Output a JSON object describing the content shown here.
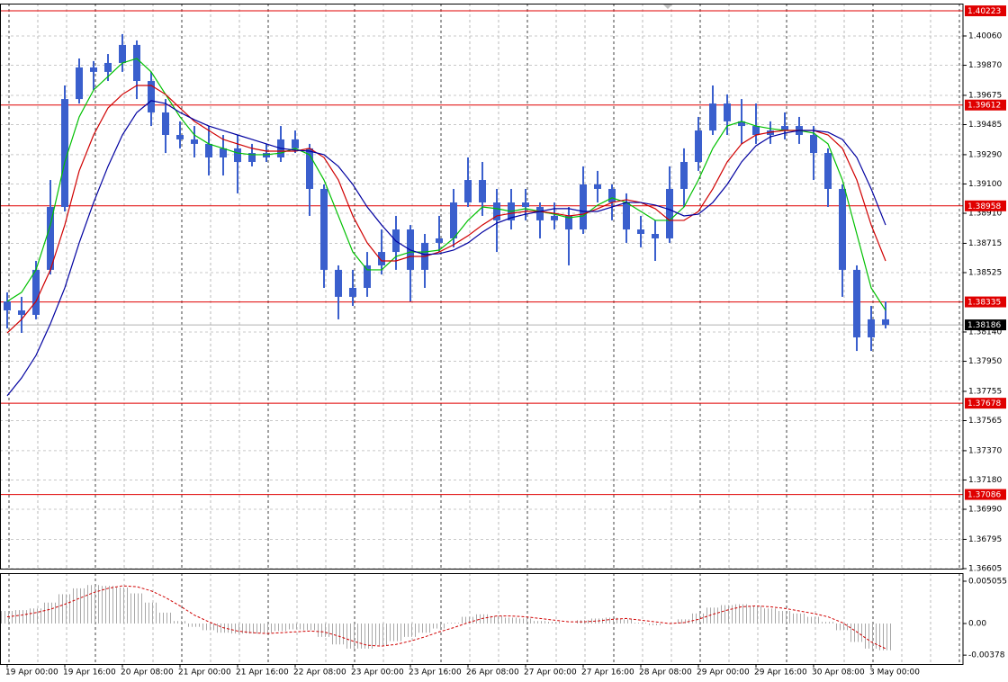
{
  "chart_data": [
    {
      "type": "ohlc",
      "color": "#3a5fcd",
      "categories": [
        "19 Apr 00:00",
        null,
        null,
        null,
        "19 Apr 16:00",
        null,
        null,
        null,
        "20 Apr 08:00",
        null,
        null,
        null,
        "21 Apr 00:00",
        null,
        null,
        null,
        "21 Apr 16:00",
        null,
        null,
        null,
        "22 Apr 08:00",
        null,
        null,
        null,
        "23 Apr 00:00",
        null,
        null,
        null,
        "23 Apr 16:00",
        null,
        null,
        null,
        "26 Apr 08:00",
        null,
        null,
        null,
        "27 Apr 00:00",
        null,
        null,
        null,
        "27 Apr 16:00",
        null,
        null,
        null,
        "28 Apr 08:00",
        null,
        null,
        null,
        "29 Apr 00:00",
        null,
        null,
        null,
        "29 Apr 16:00",
        null,
        null,
        null,
        "30 Apr 08:00",
        null,
        null,
        null,
        "3 May 00:00",
        null
      ],
      "open": [
        1.38338,
        1.3828,
        1.38251,
        1.38543,
        1.38951,
        1.39651,
        1.39856,
        1.39827,
        1.39885,
        1.40002,
        1.39768,
        1.39564,
        1.39418,
        1.39389,
        1.3936,
        1.39272,
        1.39331,
        1.39243,
        1.39301,
        1.39272,
        1.39389,
        1.39331,
        1.39068,
        1.38543,
        1.38368,
        1.38426,
        1.38572,
        1.38659,
        1.38805,
        1.38543,
        1.38718,
        1.38747,
        1.3898,
        1.39126,
        1.3898,
        1.38864,
        1.3898,
        1.38951,
        1.38864,
        1.38893,
        1.38805,
        1.39097,
        1.39068,
        1.3898,
        1.38805,
        1.38776,
        1.38747,
        1.39068,
        1.39243,
        1.39447,
        1.39622,
        1.39506,
        1.39476,
        1.39418,
        1.39447,
        1.39476,
        1.39418,
        1.39301,
        1.39068,
        1.38543,
        1.38105,
        1.38222
      ],
      "high": [
        1.38397,
        1.38368,
        1.38601,
        1.39126,
        1.39739,
        1.39914,
        1.39897,
        1.39943,
        1.40072,
        1.40031,
        1.39827,
        1.39651,
        1.39506,
        1.39476,
        1.39476,
        1.39418,
        1.39418,
        1.3936,
        1.3936,
        1.39476,
        1.39447,
        1.3936,
        1.39097,
        1.38572,
        1.38543,
        1.38659,
        1.38805,
        1.38893,
        1.38834,
        1.38776,
        1.38893,
        1.39068,
        1.39272,
        1.39243,
        1.39068,
        1.39068,
        1.39068,
        1.3898,
        1.3898,
        1.38951,
        1.39214,
        1.39185,
        1.39097,
        1.39039,
        1.38893,
        1.38864,
        1.39214,
        1.39331,
        1.39535,
        1.39739,
        1.39681,
        1.39651,
        1.39622,
        1.39506,
        1.39564,
        1.39535,
        1.39476,
        1.39331,
        1.39097,
        1.38572,
        1.38309,
        1.38338
      ],
      "low": [
        1.38163,
        1.38134,
        1.38222,
        1.38513,
        1.38922,
        1.39622,
        1.3971,
        1.39768,
        1.39827,
        1.39651,
        1.39476,
        1.39301,
        1.39331,
        1.39272,
        1.39155,
        1.39155,
        1.39039,
        1.39214,
        1.39243,
        1.39243,
        1.39301,
        1.38893,
        1.38426,
        1.38222,
        1.38309,
        1.38368,
        1.38513,
        1.38543,
        1.38338,
        1.38426,
        1.38659,
        1.38689,
        1.38951,
        1.38893,
        1.38659,
        1.38805,
        1.38864,
        1.38747,
        1.38805,
        1.38572,
        1.38776,
        1.3898,
        1.38864,
        1.38718,
        1.38689,
        1.38601,
        1.38718,
        1.38951,
        1.39185,
        1.39418,
        1.39418,
        1.3936,
        1.3936,
        1.3936,
        1.39389,
        1.3936,
        1.39126,
        1.38951,
        1.38368,
        1.38017,
        1.38017,
        1.38163
      ],
      "close": [
        1.3828,
        1.38251,
        1.38543,
        1.38951,
        1.39651,
        1.39856,
        1.39827,
        1.39885,
        1.40002,
        1.39768,
        1.39564,
        1.39418,
        1.39389,
        1.3936,
        1.39272,
        1.39331,
        1.39243,
        1.39301,
        1.39272,
        1.39389,
        1.39331,
        1.39068,
        1.38543,
        1.38368,
        1.38426,
        1.38572,
        1.38659,
        1.38805,
        1.38543,
        1.38718,
        1.38747,
        1.3898,
        1.39126,
        1.3898,
        1.38864,
        1.3898,
        1.38951,
        1.38864,
        1.38893,
        1.38805,
        1.39097,
        1.39068,
        1.3898,
        1.38805,
        1.38776,
        1.38747,
        1.39068,
        1.39243,
        1.39447,
        1.39622,
        1.39506,
        1.39476,
        1.39418,
        1.39447,
        1.39476,
        1.39418,
        1.39301,
        1.39068,
        1.38543,
        1.38105,
        1.38222,
        1.38186
      ],
      "series": [
        {
          "color": "#00c000",
          "values": [
            1.38338,
            1.38397,
            1.38543,
            1.38834,
            1.39243,
            1.39535,
            1.3971,
            1.39797,
            1.39885,
            1.39914,
            1.39827,
            1.39681,
            1.39535,
            1.39418,
            1.3936,
            1.39331,
            1.39301,
            1.3929,
            1.3929,
            1.39301,
            1.39331,
            1.3929,
            1.39126,
            1.38893,
            1.38659,
            1.38543,
            1.38543,
            1.3863,
            1.38659,
            1.38659,
            1.38671,
            1.38747,
            1.38864,
            1.38951,
            1.3894,
            1.38922,
            1.3894,
            1.38922,
            1.38904,
            1.38881,
            1.38893,
            1.38963,
            1.3901,
            1.3898,
            1.38922,
            1.38864,
            1.38864,
            1.38951,
            1.39126,
            1.39331,
            1.39476,
            1.39506,
            1.39476,
            1.39459,
            1.39447,
            1.39447,
            1.3943,
            1.3936,
            1.39126,
            1.38776,
            1.38426,
            1.3828
          ]
        },
        {
          "color": "#d00000",
          "values": [
            1.38134,
            1.38222,
            1.38338,
            1.38543,
            1.38834,
            1.39185,
            1.39418,
            1.39593,
            1.39681,
            1.39739,
            1.39739,
            1.39681,
            1.39593,
            1.39506,
            1.39447,
            1.39389,
            1.3936,
            1.39331,
            1.39313,
            1.39313,
            1.39313,
            1.39331,
            1.39272,
            1.39126,
            1.38893,
            1.38718,
            1.38601,
            1.38601,
            1.3863,
            1.3863,
            1.38659,
            1.38706,
            1.38764,
            1.38834,
            1.38893,
            1.3891,
            1.38922,
            1.38922,
            1.3891,
            1.38893,
            1.38904,
            1.3894,
            1.3898,
            1.38998,
            1.3898,
            1.3894,
            1.38864,
            1.38864,
            1.38922,
            1.39068,
            1.39243,
            1.3936,
            1.39418,
            1.39436,
            1.39447,
            1.39447,
            1.39447,
            1.39418,
            1.39331,
            1.39126,
            1.38834,
            1.38601
          ]
        },
        {
          "color": "#0000a0",
          "values": [
            1.37726,
            1.37842,
            1.37988,
            1.38193,
            1.38426,
            1.38718,
            1.3898,
            1.39214,
            1.39418,
            1.39564,
            1.3964,
            1.39622,
            1.39564,
            1.39517,
            1.39476,
            1.39447,
            1.39418,
            1.39389,
            1.3936,
            1.39331,
            1.39319,
            1.39313,
            1.3929,
            1.39214,
            1.39097,
            1.38951,
            1.38834,
            1.38729,
            1.38671,
            1.38642,
            1.38648,
            1.38671,
            1.38718,
            1.38788,
            1.38846,
            1.38881,
            1.38904,
            1.38922,
            1.3894,
            1.3894,
            1.38922,
            1.38922,
            1.38951,
            1.3898,
            1.3898,
            1.38963,
            1.38934,
            1.38893,
            1.38904,
            1.3898,
            1.39097,
            1.39243,
            1.39348,
            1.39406,
            1.3943,
            1.39447,
            1.39447,
            1.39436,
            1.39389,
            1.39272,
            1.39068,
            1.38834
          ]
        }
      ],
      "ylim": [
        1.36605,
        1.4027
      ],
      "yticks": [
        {
          "value": 1.4006,
          "label": "1.40060"
        },
        {
          "value": 1.3987,
          "label": "1.39870"
        },
        1.39675,
        1.39485,
        {
          "value": 1.3929,
          "label": "1.39290"
        },
        {
          "value": 1.391,
          "label": "1.39100"
        },
        {
          "value": 1.3891,
          "label": "1.38910"
        },
        1.38715,
        1.38525,
        {
          "value": 1.3814,
          "label": "1.38140"
        },
        {
          "value": 1.3795,
          "label": "1.37950"
        },
        1.37755,
        1.37565,
        {
          "value": 1.3737,
          "label": "1.37370"
        },
        {
          "value": 1.3718,
          "label": "1.37180"
        },
        {
          "value": 1.3699,
          "label": "1.36990"
        },
        1.36795,
        1.36605
      ],
      "grid": true,
      "levels": [
        1.40223,
        1.39612,
        1.38958,
        1.38335,
        1.37678,
        1.37086
      ],
      "level_color": "#e00000",
      "last_price": 1.38186
    },
    {
      "type": "macd",
      "series": [
        {
          "type": "bar",
          "color": "#a8a8a8",
          "values": [
            0.0015,
            0.0016,
            0.0018,
            0.0025,
            0.0035,
            0.0042,
            0.0046,
            0.0045,
            0.0043,
            0.0036,
            0.0025,
            0.0013,
            0.0003,
            -0.0004,
            -0.0008,
            -0.0011,
            -0.0012,
            -0.0012,
            -0.0011,
            -0.0009,
            -0.0007,
            -0.0008,
            -0.0016,
            -0.0025,
            -0.003,
            -0.003,
            -0.0026,
            -0.0021,
            -0.0016,
            -0.0011,
            -0.0006,
            0.0001,
            0.0008,
            0.0011,
            0.0009,
            0.0007,
            0.0006,
            0.0003,
            0.0002,
            0,
            0.0004,
            0.0006,
            0.0007,
            0.0005,
            0.0001,
            -0.0002,
            0,
            0.0005,
            0.0012,
            0.0019,
            0.0022,
            0.0023,
            0.0021,
            0.0018,
            0.0015,
            0.0012,
            0.0008,
            0.0002,
            -0.0008,
            -0.0022,
            -0.003,
            -0.0032
          ]
        },
        {
          "type": "line",
          "color": "#d00000",
          "values": [
            0.0008,
            0.001,
            0.0013,
            0.0017,
            0.0023,
            0.003,
            0.0037,
            0.0042,
            0.0045,
            0.0044,
            0.0039,
            0.0031,
            0.0021,
            0.001,
            0.0002,
            -0.0005,
            -0.0009,
            -0.0011,
            -0.0012,
            -0.0011,
            -0.001,
            -0.0009,
            -0.001,
            -0.0015,
            -0.0021,
            -0.0026,
            -0.0027,
            -0.0025,
            -0.0021,
            -0.0016,
            -0.001,
            -0.0005,
            0.0001,
            0.0006,
            0.0009,
            0.0009,
            0.0008,
            0.0006,
            0.0004,
            0.0002,
            0.0002,
            0.0003,
            0.0005,
            0.0006,
            0.0004,
            0.0002,
            0,
            0.0001,
            0.0005,
            0.0011,
            0.0016,
            0.002,
            0.0021,
            0.002,
            0.0018,
            0.0015,
            0.0012,
            0.0008,
            0.0001,
            -0.001,
            -0.0022,
            -0.003
          ]
        }
      ],
      "ylim": [
        -0.00484,
        0.00602
      ],
      "yticks": [
        0.005055,
        {
          "value": 0,
          "label": "0.00"
        },
        -0.00378
      ]
    }
  ]
}
